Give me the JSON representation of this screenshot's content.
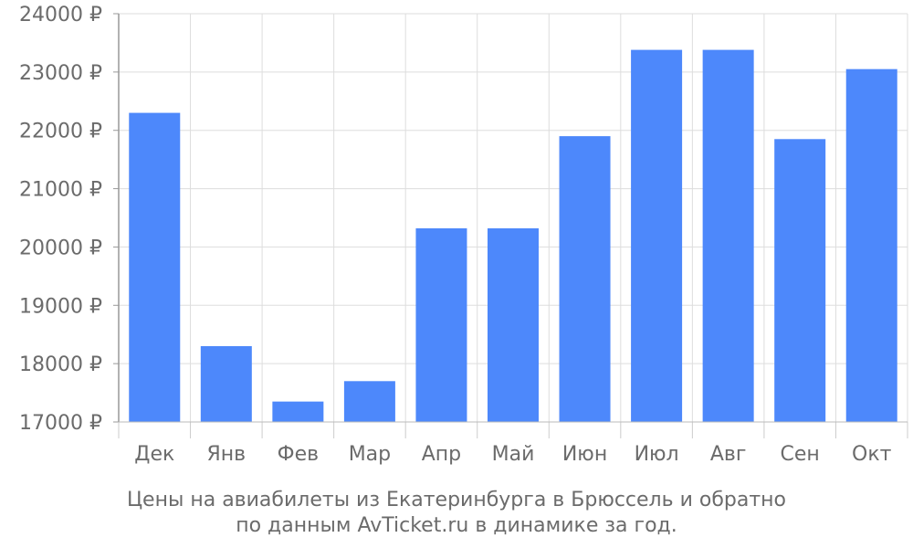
{
  "chart_data": {
    "type": "bar",
    "categories": [
      "Дек",
      "Янв",
      "Фев",
      "Мар",
      "Апр",
      "Май",
      "Июн",
      "Июл",
      "Авг",
      "Сен",
      "Окт"
    ],
    "values": [
      22300,
      18300,
      17350,
      17700,
      20320,
      20320,
      21900,
      23380,
      23380,
      21850,
      23050
    ],
    "ylim": [
      17000,
      24000
    ],
    "yticks": [
      17000,
      18000,
      19000,
      20000,
      21000,
      22000,
      23000,
      24000
    ],
    "ytick_suffix": " ₽",
    "grid": true,
    "bar_color": "#4d88fb",
    "title": ""
  },
  "caption": {
    "line1": "Цены на авиабилеты из Екатеринбурга в Брюссель и обратно",
    "line2": "по данным AvTicket.ru в динамике за год."
  }
}
